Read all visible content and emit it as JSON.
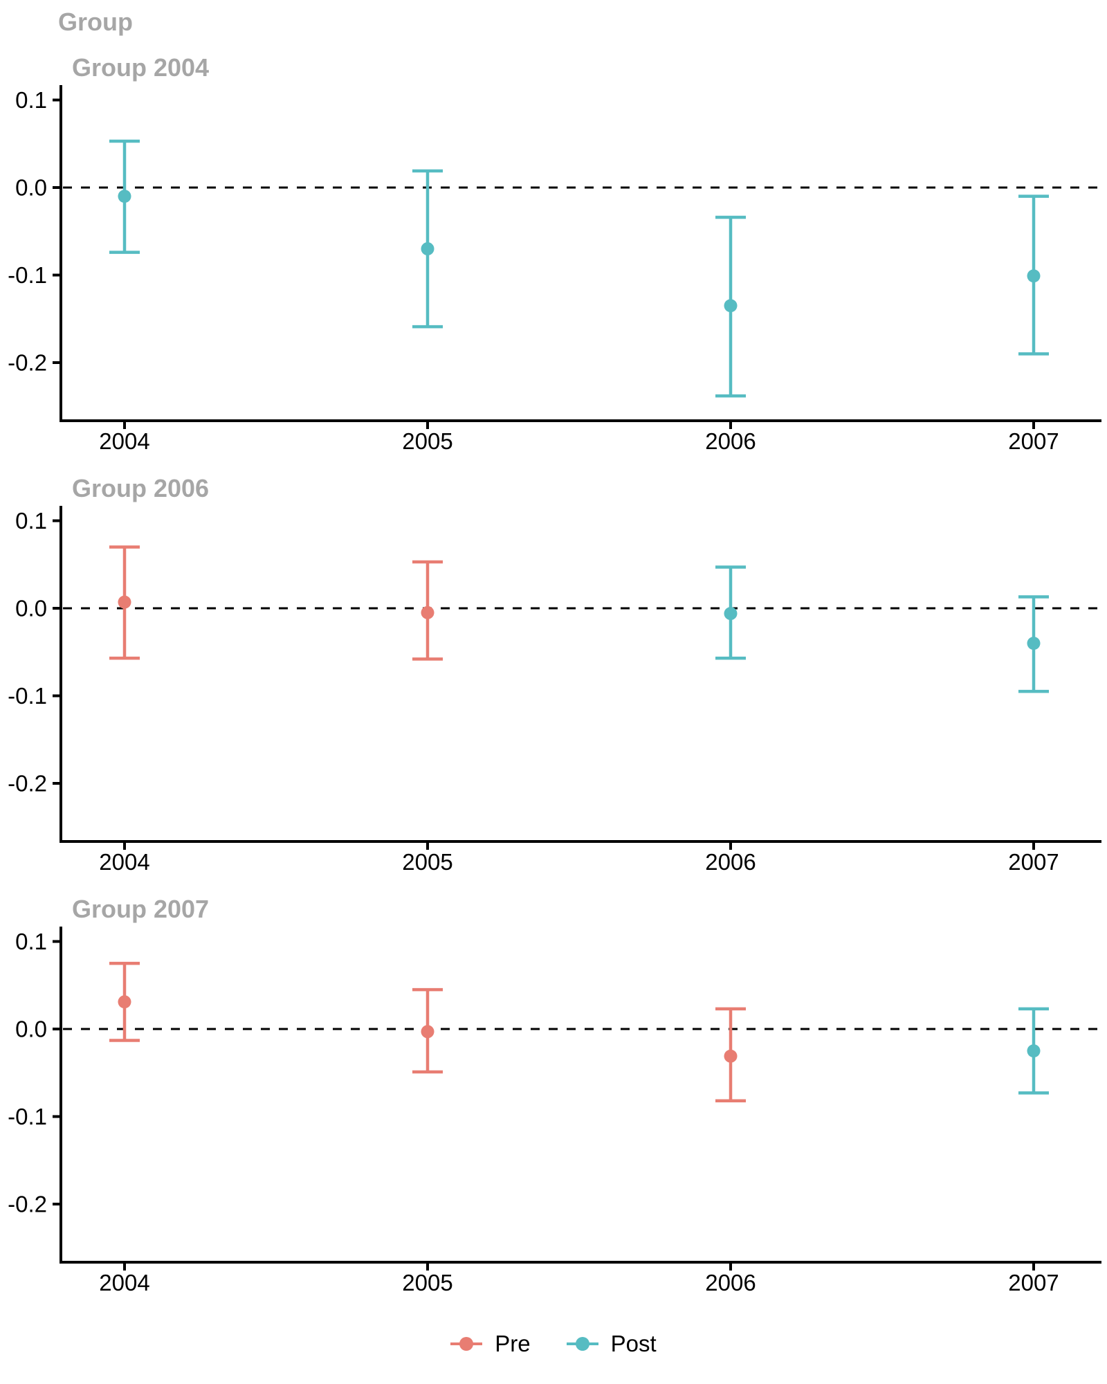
{
  "colors": {
    "pre": "#e87d72",
    "post": "#56bcc2",
    "axis": "#000000",
    "zero_line": "#000000",
    "facet_title": "#a6a6a6",
    "tick_label": "#000000"
  },
  "chart_data": {
    "type": "scatter",
    "subtype": "pointrange-errorbar",
    "title": "Group",
    "x_categories": [
      "2004",
      "2005",
      "2006",
      "2007"
    ],
    "yticks": [
      0.1,
      0.0,
      -0.1,
      -0.2
    ],
    "ytick_labels": [
      "0.1",
      "0.0",
      "-0.1",
      "-0.2"
    ],
    "ylim": [
      -0.266,
      0.117
    ],
    "zero_reference_line": 0,
    "grid": "off",
    "legend_position": "bottom",
    "legend": {
      "items": [
        {
          "label": "Pre",
          "color_key": "pre"
        },
        {
          "label": "Post",
          "color_key": "post"
        }
      ]
    },
    "facets": [
      {
        "title": "Group 2004",
        "points": [
          {
            "x": "2004",
            "series": "Post",
            "estimate": -0.01,
            "ci_low": -0.074,
            "ci_high": 0.053
          },
          {
            "x": "2005",
            "series": "Post",
            "estimate": -0.07,
            "ci_low": -0.159,
            "ci_high": 0.019
          },
          {
            "x": "2006",
            "series": "Post",
            "estimate": -0.135,
            "ci_low": -0.238,
            "ci_high": -0.034
          },
          {
            "x": "2007",
            "series": "Post",
            "estimate": -0.101,
            "ci_low": -0.19,
            "ci_high": -0.01
          }
        ]
      },
      {
        "title": "Group 2006",
        "points": [
          {
            "x": "2004",
            "series": "Pre",
            "estimate": 0.007,
            "ci_low": -0.057,
            "ci_high": 0.07
          },
          {
            "x": "2005",
            "series": "Pre",
            "estimate": -0.005,
            "ci_low": -0.058,
            "ci_high": 0.053
          },
          {
            "x": "2006",
            "series": "Post",
            "estimate": -0.006,
            "ci_low": -0.057,
            "ci_high": 0.047
          },
          {
            "x": "2007",
            "series": "Post",
            "estimate": -0.04,
            "ci_low": -0.095,
            "ci_high": 0.013
          }
        ]
      },
      {
        "title": "Group 2007",
        "points": [
          {
            "x": "2004",
            "series": "Pre",
            "estimate": 0.031,
            "ci_low": -0.013,
            "ci_high": 0.075
          },
          {
            "x": "2005",
            "series": "Pre",
            "estimate": -0.003,
            "ci_low": -0.049,
            "ci_high": 0.045
          },
          {
            "x": "2006",
            "series": "Pre",
            "estimate": -0.031,
            "ci_low": -0.082,
            "ci_high": 0.023
          },
          {
            "x": "2007",
            "series": "Post",
            "estimate": -0.025,
            "ci_low": -0.073,
            "ci_high": 0.023
          }
        ]
      }
    ]
  }
}
